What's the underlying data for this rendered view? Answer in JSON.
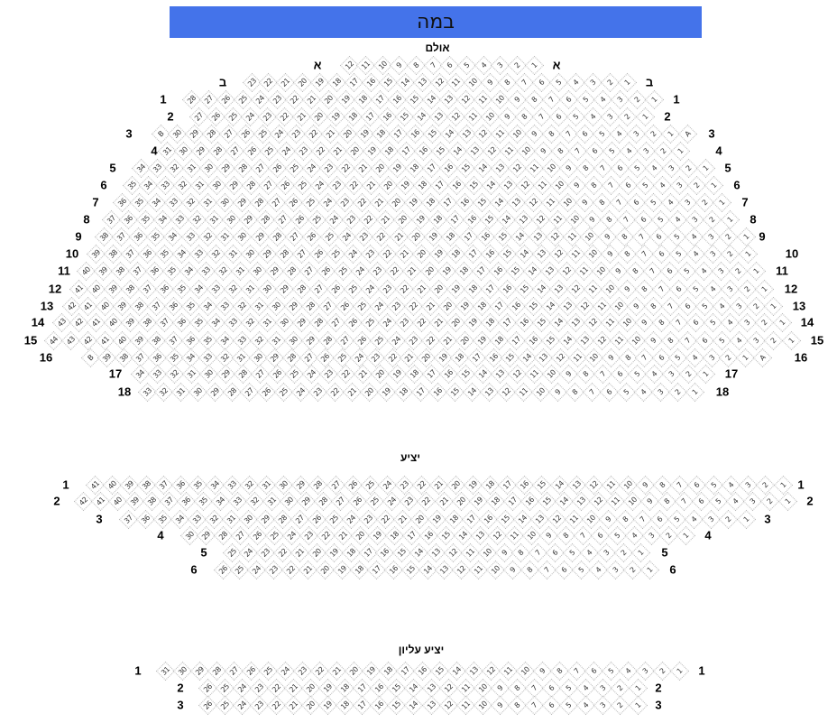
{
  "stage": {
    "label": "במה",
    "color": "#4473EA"
  },
  "sections": [
    {
      "title": "אולם",
      "rows": [
        {
          "row": "א",
          "max": 12
        },
        {
          "row": "ב",
          "max": 23
        },
        {
          "row": "1",
          "max": 28
        },
        {
          "row": "2",
          "max": 27
        },
        {
          "row": "3",
          "max": 30,
          "left": "B",
          "right": "A"
        },
        {
          "row": "4",
          "max": 31
        },
        {
          "row": "5",
          "max": 34
        },
        {
          "row": "6",
          "max": 35
        },
        {
          "row": "7",
          "max": 36
        },
        {
          "row": "8",
          "max": 37
        },
        {
          "row": "9",
          "max": 38
        },
        {
          "row": "10",
          "max": 39
        },
        {
          "row": "11",
          "max": 40
        },
        {
          "row": "12",
          "max": 41
        },
        {
          "row": "13",
          "max": 42
        },
        {
          "row": "14",
          "max": 43
        },
        {
          "row": "15",
          "max": 44
        },
        {
          "row": "16",
          "max": 39,
          "left": "B",
          "right": "A"
        },
        {
          "row": "17",
          "max": 34
        },
        {
          "row": "18",
          "max": 33
        }
      ]
    },
    {
      "title": "יציע",
      "rows": [
        {
          "row": "1",
          "max": 41
        },
        {
          "row": "2",
          "max": 42
        },
        {
          "row": "3",
          "max": 37
        },
        {
          "row": "4",
          "max": 30
        },
        {
          "row": "5",
          "max": 25
        },
        {
          "row": "6",
          "max": 26
        }
      ]
    },
    {
      "title": "יציע עליון",
      "rows": [
        {
          "row": "1",
          "max": 31
        },
        {
          "row": "2",
          "max": 26
        },
        {
          "row": "3",
          "max": 26
        }
      ]
    }
  ]
}
